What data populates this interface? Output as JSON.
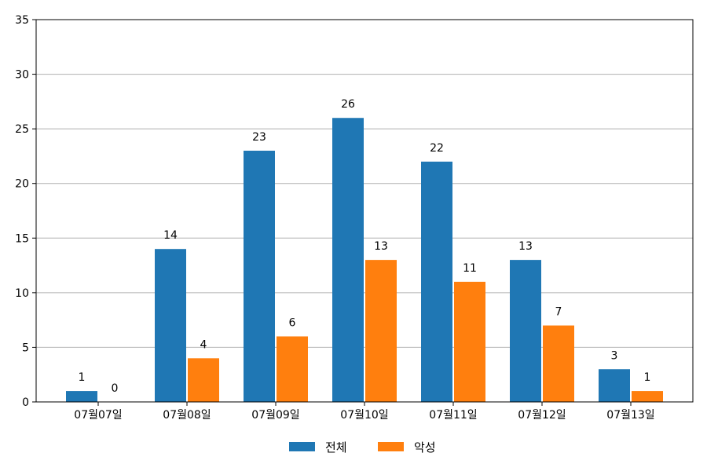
{
  "chart_data": {
    "type": "bar",
    "categories": [
      "07월07일",
      "07월08일",
      "07월09일",
      "07월10일",
      "07월11일",
      "07월12일",
      "07월13일"
    ],
    "series": [
      {
        "name": "전체",
        "values": [
          1,
          14,
          23,
          26,
          22,
          13,
          3
        ],
        "color": "#1f77b4"
      },
      {
        "name": "악성",
        "values": [
          0,
          4,
          6,
          13,
          11,
          7,
          1
        ],
        "color": "#ff7f0e"
      }
    ],
    "title": "",
    "xlabel": "",
    "ylabel": "",
    "ylim": [
      0,
      35
    ],
    "yticks": [
      0,
      5,
      10,
      15,
      20,
      25,
      30,
      35
    ],
    "grid": "horizontal",
    "legend_position": "bottom-center",
    "data_labels": true
  }
}
